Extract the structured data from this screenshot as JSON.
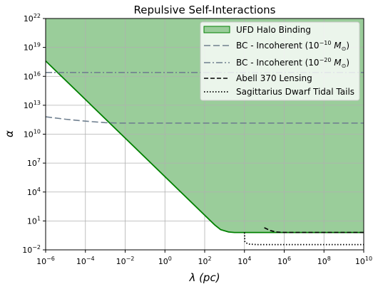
{
  "chart_data": {
    "type": "line",
    "title": "Repulsive Self-Interactions",
    "xlabel": "λ (pc)",
    "ylabel": "α",
    "xscale": "log",
    "yscale": "log",
    "xlim_exp": [
      -6,
      10
    ],
    "ylim_exp": [
      -2,
      22
    ],
    "grid": true,
    "legend_position": "top-right",
    "x_ticks": [
      {
        "exp": -6,
        "base": "10",
        "power": "−6"
      },
      {
        "exp": -4,
        "base": "10",
        "power": "−4"
      },
      {
        "exp": -2,
        "base": "10",
        "power": "−2"
      },
      {
        "exp": 0,
        "base": "10",
        "power": "0"
      },
      {
        "exp": 2,
        "base": "10",
        "power": "2"
      },
      {
        "exp": 4,
        "base": "10",
        "power": "4"
      },
      {
        "exp": 6,
        "base": "10",
        "power": "6"
      },
      {
        "exp": 8,
        "base": "10",
        "power": "8"
      },
      {
        "exp": 10,
        "base": "10",
        "power": "10"
      }
    ],
    "y_ticks": [
      {
        "exp": -2,
        "base": "10",
        "power": "−2"
      },
      {
        "exp": 1,
        "base": "10",
        "power": "1"
      },
      {
        "exp": 4,
        "base": "10",
        "power": "4"
      },
      {
        "exp": 7,
        "base": "10",
        "power": "7"
      },
      {
        "exp": 10,
        "base": "10",
        "power": "10"
      },
      {
        "exp": 13,
        "base": "10",
        "power": "13"
      },
      {
        "exp": 16,
        "base": "10",
        "power": "16"
      },
      {
        "exp": 19,
        "base": "10",
        "power": "19"
      },
      {
        "exp": 22,
        "base": "10",
        "power": "22"
      }
    ],
    "series": [
      {
        "key": "ufd",
        "name": "UFD Halo Binding",
        "style": "filled-region",
        "color": "#008000",
        "fill": "#9acd9a",
        "log_points": [
          [
            -6,
            17.6
          ],
          [
            2.5,
            0.6
          ],
          [
            2.8,
            0.1
          ],
          [
            3.2,
            -0.15
          ],
          [
            3.5,
            -0.2
          ],
          [
            10,
            -0.2
          ]
        ]
      },
      {
        "key": "bc10",
        "name": "BC - Incoherent (10",
        "power": "−10",
        "unit": " M",
        "unit_sub": "⊙",
        "close": ")",
        "style": "dashed",
        "color": "#708090",
        "log_points": [
          [
            -6,
            11.8
          ],
          [
            -5,
            11.55
          ],
          [
            -4,
            11.35
          ],
          [
            -3,
            11.2
          ],
          [
            -2.3,
            11.15
          ],
          [
            10,
            11.15
          ]
        ]
      },
      {
        "key": "bc20",
        "name": "BC - Incoherent (10",
        "power": "−20",
        "unit": " M",
        "unit_sub": "⊙",
        "close": ")",
        "style": "dashdot",
        "color": "#708090",
        "log_points": [
          [
            -6,
            16.4
          ],
          [
            10,
            16.4
          ]
        ]
      },
      {
        "key": "abell",
        "name": "Abell 370 Lensing",
        "style": "dashed",
        "color": "#000000",
        "log_points": [
          [
            5.0,
            0.3
          ],
          [
            5.3,
            0.0
          ],
          [
            5.6,
            -0.15
          ],
          [
            6,
            -0.2
          ],
          [
            10,
            -0.2
          ]
        ]
      },
      {
        "key": "sag",
        "name": "Sagittarius Dwarf Tidal Tails",
        "style": "dotted",
        "color": "#000000",
        "log_points": [
          [
            4,
            -0.2
          ],
          [
            4.02,
            -1.2
          ],
          [
            4.2,
            -1.4
          ],
          [
            4.6,
            -1.45
          ],
          [
            10,
            -1.45
          ]
        ]
      }
    ]
  }
}
